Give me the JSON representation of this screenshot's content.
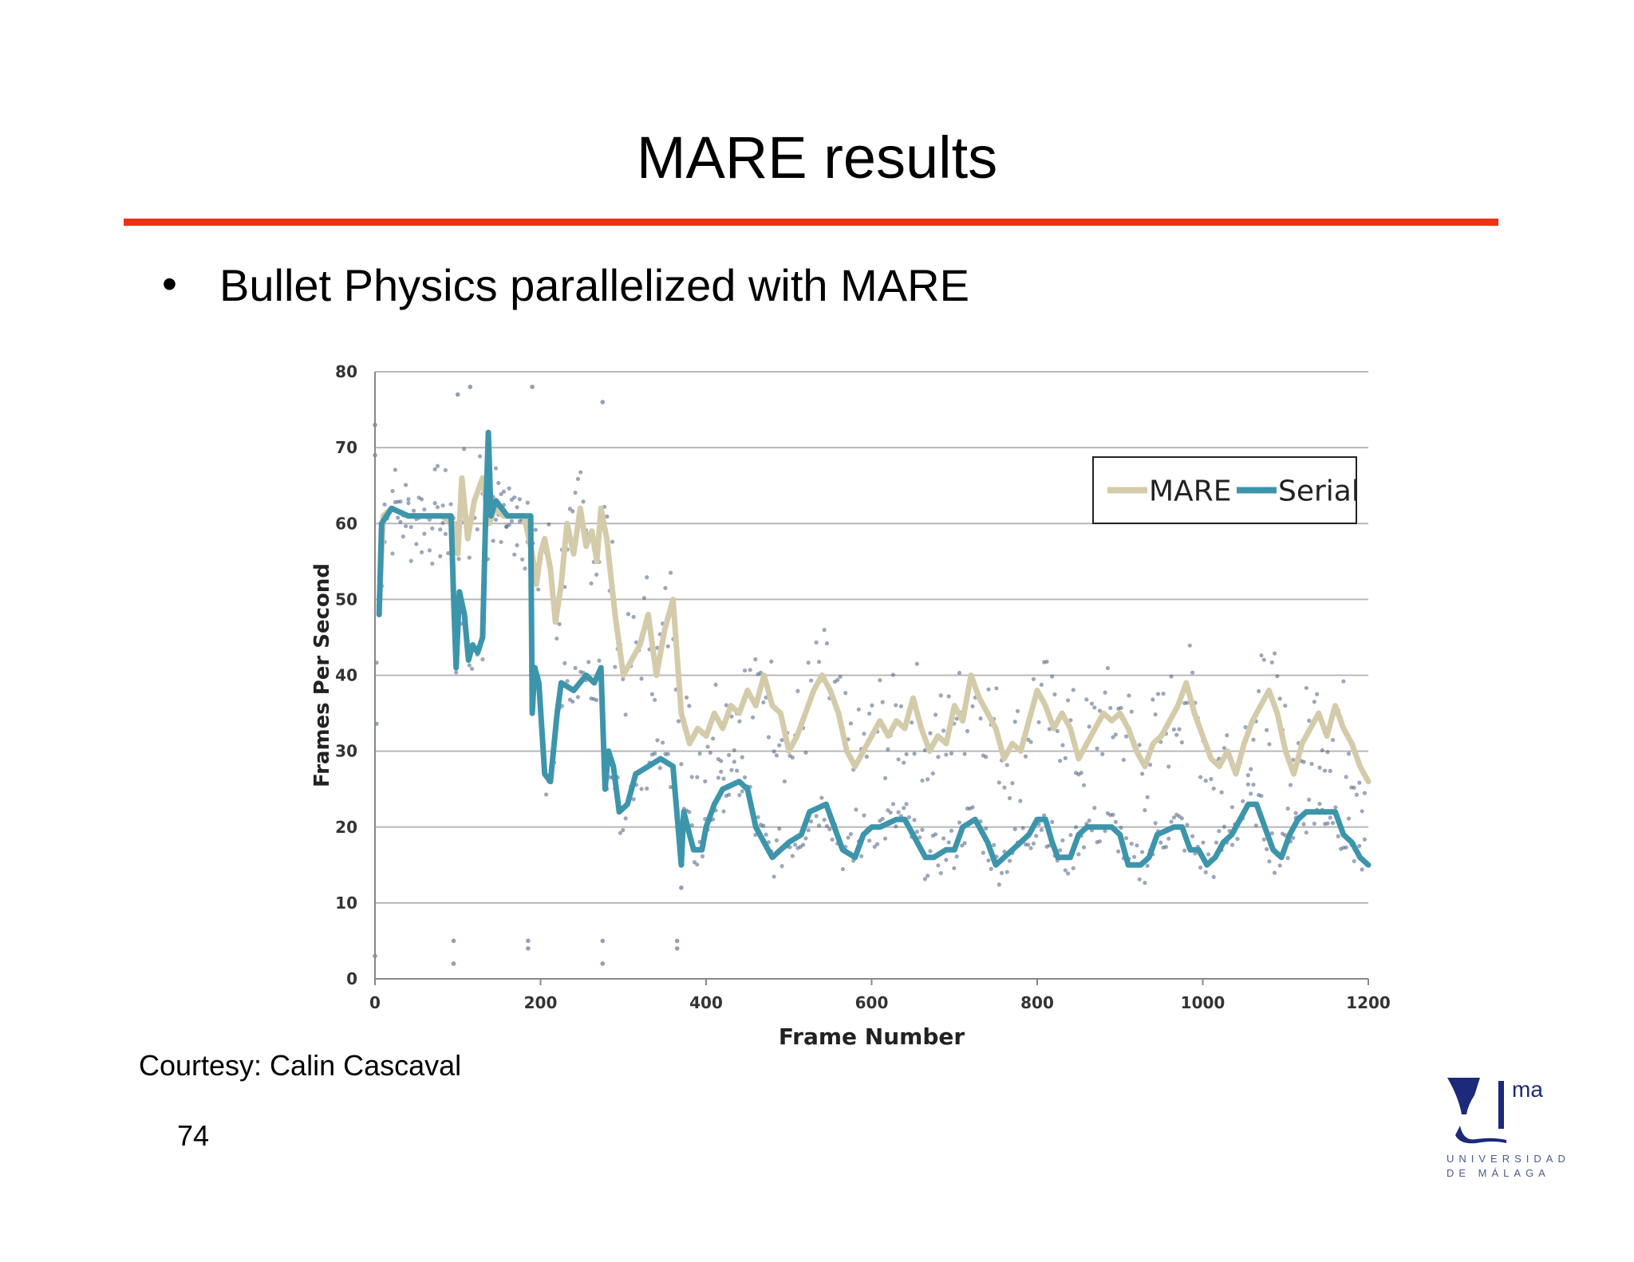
{
  "slide": {
    "title": "MARE results",
    "bullet_text": "Bullet Physics parallelized with MARE",
    "courtesy": "Courtesy: Calin Cascaval",
    "page_number": "74"
  },
  "logo": {
    "wordmark": "ma",
    "line1": "UNIVERSIDAD",
    "line2": "DE MÁLAGA"
  },
  "colors": {
    "rule": "#ee3214",
    "mare": "#d4cbaa",
    "serial": "#3d95ab",
    "scatter": "#4a5e80",
    "grid": "#b8b8b8"
  },
  "chart_data": {
    "type": "line",
    "xlabel": "Frame Number",
    "ylabel": "Frames Per Second",
    "xlim": [
      0,
      1200
    ],
    "ylim": [
      0,
      80
    ],
    "xticks": [
      "0",
      "200",
      "400",
      "600",
      "800",
      "1000",
      "1200"
    ],
    "yticks": [
      "0",
      "10",
      "20",
      "30",
      "40",
      "50",
      "60",
      "70",
      "80"
    ],
    "grid": true,
    "legend_position": "top-right",
    "series": [
      {
        "name": "MARE",
        "points": [
          [
            5,
            49
          ],
          [
            10,
            61
          ],
          [
            20,
            62
          ],
          [
            40,
            61
          ],
          [
            60,
            61
          ],
          [
            80,
            61
          ],
          [
            95,
            60
          ],
          [
            100,
            56
          ],
          [
            105,
            66
          ],
          [
            112,
            58
          ],
          [
            120,
            63
          ],
          [
            130,
            66
          ],
          [
            138,
            60
          ],
          [
            145,
            62
          ],
          [
            155,
            61
          ],
          [
            170,
            61
          ],
          [
            180,
            61
          ],
          [
            190,
            56
          ],
          [
            195,
            52
          ],
          [
            200,
            56
          ],
          [
            205,
            58
          ],
          [
            212,
            54
          ],
          [
            218,
            47
          ],
          [
            225,
            52
          ],
          [
            232,
            60
          ],
          [
            240,
            56
          ],
          [
            248,
            62
          ],
          [
            255,
            57
          ],
          [
            262,
            59
          ],
          [
            268,
            55
          ],
          [
            273,
            62
          ],
          [
            280,
            58
          ],
          [
            290,
            48
          ],
          [
            300,
            40
          ],
          [
            310,
            42
          ],
          [
            320,
            44
          ],
          [
            330,
            48
          ],
          [
            340,
            40
          ],
          [
            350,
            46
          ],
          [
            360,
            50
          ],
          [
            370,
            35
          ],
          [
            380,
            31
          ],
          [
            390,
            33
          ],
          [
            400,
            32
          ],
          [
            410,
            35
          ],
          [
            420,
            33
          ],
          [
            430,
            36
          ],
          [
            440,
            35
          ],
          [
            450,
            38
          ],
          [
            460,
            36
          ],
          [
            470,
            40
          ],
          [
            480,
            36
          ],
          [
            490,
            35
          ],
          [
            500,
            30
          ],
          [
            510,
            32
          ],
          [
            520,
            35
          ],
          [
            530,
            38
          ],
          [
            540,
            40
          ],
          [
            550,
            38
          ],
          [
            560,
            35
          ],
          [
            570,
            30
          ],
          [
            580,
            28
          ],
          [
            590,
            30
          ],
          [
            600,
            32
          ],
          [
            610,
            34
          ],
          [
            620,
            32
          ],
          [
            630,
            34
          ],
          [
            640,
            33
          ],
          [
            650,
            37
          ],
          [
            660,
            33
          ],
          [
            670,
            30
          ],
          [
            680,
            32
          ],
          [
            690,
            31
          ],
          [
            700,
            36
          ],
          [
            710,
            34
          ],
          [
            720,
            40
          ],
          [
            730,
            37
          ],
          [
            740,
            35
          ],
          [
            750,
            33
          ],
          [
            760,
            29
          ],
          [
            770,
            31
          ],
          [
            780,
            30
          ],
          [
            790,
            34
          ],
          [
            800,
            38
          ],
          [
            810,
            36
          ],
          [
            820,
            33
          ],
          [
            830,
            35
          ],
          [
            840,
            33
          ],
          [
            850,
            29
          ],
          [
            860,
            31
          ],
          [
            870,
            33
          ],
          [
            880,
            35
          ],
          [
            890,
            34
          ],
          [
            900,
            35
          ],
          [
            910,
            33
          ],
          [
            920,
            30
          ],
          [
            930,
            28
          ],
          [
            940,
            31
          ],
          [
            950,
            32
          ],
          [
            960,
            34
          ],
          [
            970,
            36
          ],
          [
            980,
            39
          ],
          [
            990,
            35
          ],
          [
            1000,
            32
          ],
          [
            1010,
            29
          ],
          [
            1020,
            28
          ],
          [
            1030,
            30
          ],
          [
            1040,
            27
          ],
          [
            1050,
            31
          ],
          [
            1060,
            34
          ],
          [
            1070,
            36
          ],
          [
            1080,
            38
          ],
          [
            1090,
            35
          ],
          [
            1100,
            30
          ],
          [
            1110,
            27
          ],
          [
            1120,
            31
          ],
          [
            1130,
            33
          ],
          [
            1140,
            35
          ],
          [
            1150,
            32
          ],
          [
            1160,
            36
          ],
          [
            1170,
            33
          ],
          [
            1180,
            31
          ],
          [
            1190,
            28
          ],
          [
            1200,
            26
          ]
        ]
      },
      {
        "name": "Serial",
        "points": [
          [
            5,
            48
          ],
          [
            8,
            60
          ],
          [
            20,
            62
          ],
          [
            40,
            61
          ],
          [
            60,
            61
          ],
          [
            80,
            61
          ],
          [
            92,
            61
          ],
          [
            95,
            50
          ],
          [
            98,
            41
          ],
          [
            102,
            51
          ],
          [
            108,
            48
          ],
          [
            113,
            42
          ],
          [
            118,
            44
          ],
          [
            124,
            43
          ],
          [
            130,
            45
          ],
          [
            134,
            62
          ],
          [
            137,
            72
          ],
          [
            140,
            61
          ],
          [
            146,
            63
          ],
          [
            160,
            61
          ],
          [
            180,
            61
          ],
          [
            188,
            61
          ],
          [
            190,
            35
          ],
          [
            193,
            41
          ],
          [
            198,
            39
          ],
          [
            205,
            27
          ],
          [
            212,
            26
          ],
          [
            220,
            35
          ],
          [
            225,
            39
          ],
          [
            240,
            38
          ],
          [
            255,
            40
          ],
          [
            265,
            39
          ],
          [
            273,
            41
          ],
          [
            278,
            25
          ],
          [
            282,
            30
          ],
          [
            288,
            28
          ],
          [
            295,
            22
          ],
          [
            305,
            23
          ],
          [
            315,
            27
          ],
          [
            330,
            28
          ],
          [
            345,
            29
          ],
          [
            360,
            28
          ],
          [
            370,
            15
          ],
          [
            373,
            22
          ],
          [
            380,
            19
          ],
          [
            385,
            17
          ],
          [
            395,
            17
          ],
          [
            400,
            20
          ],
          [
            410,
            23
          ],
          [
            420,
            25
          ],
          [
            440,
            26
          ],
          [
            450,
            25
          ],
          [
            460,
            20
          ],
          [
            470,
            18
          ],
          [
            480,
            16
          ],
          [
            490,
            17
          ],
          [
            500,
            18
          ],
          [
            515,
            19
          ],
          [
            525,
            22
          ],
          [
            545,
            23
          ],
          [
            555,
            20
          ],
          [
            565,
            17
          ],
          [
            580,
            16
          ],
          [
            590,
            19
          ],
          [
            600,
            20
          ],
          [
            610,
            20
          ],
          [
            630,
            21
          ],
          [
            640,
            21
          ],
          [
            645,
            20
          ],
          [
            655,
            18
          ],
          [
            665,
            16
          ],
          [
            675,
            16
          ],
          [
            690,
            17
          ],
          [
            700,
            17
          ],
          [
            710,
            20
          ],
          [
            725,
            21
          ],
          [
            740,
            18
          ],
          [
            750,
            15
          ],
          [
            760,
            16
          ],
          [
            780,
            18
          ],
          [
            790,
            19
          ],
          [
            800,
            21
          ],
          [
            810,
            21
          ],
          [
            818,
            18
          ],
          [
            825,
            16
          ],
          [
            840,
            16
          ],
          [
            850,
            19
          ],
          [
            860,
            20
          ],
          [
            880,
            20
          ],
          [
            890,
            20
          ],
          [
            900,
            19
          ],
          [
            905,
            17
          ],
          [
            910,
            15
          ],
          [
            925,
            15
          ],
          [
            935,
            16
          ],
          [
            945,
            19
          ],
          [
            965,
            20
          ],
          [
            975,
            20
          ],
          [
            985,
            17
          ],
          [
            995,
            17
          ],
          [
            1005,
            15
          ],
          [
            1015,
            16
          ],
          [
            1025,
            18
          ],
          [
            1035,
            19
          ],
          [
            1045,
            21
          ],
          [
            1055,
            23
          ],
          [
            1065,
            23
          ],
          [
            1075,
            20
          ],
          [
            1085,
            17
          ],
          [
            1095,
            16
          ],
          [
            1105,
            19
          ],
          [
            1115,
            21
          ],
          [
            1125,
            22
          ],
          [
            1140,
            22
          ],
          [
            1150,
            22
          ],
          [
            1160,
            22
          ],
          [
            1170,
            19
          ],
          [
            1180,
            18
          ],
          [
            1190,
            16
          ],
          [
            1200,
            15
          ]
        ]
      }
    ],
    "scatter_note_values": [
      [
        0,
        3
      ],
      [
        95,
        5
      ],
      [
        95,
        2
      ],
      [
        185,
        5
      ],
      [
        185,
        4
      ],
      [
        275,
        5
      ],
      [
        275,
        2
      ],
      [
        365,
        5
      ],
      [
        365,
        4
      ],
      [
        190,
        78
      ],
      [
        100,
        77
      ],
      [
        115,
        78
      ],
      [
        275,
        76
      ],
      [
        0,
        73
      ],
      [
        0,
        69
      ],
      [
        370,
        12
      ]
    ]
  }
}
